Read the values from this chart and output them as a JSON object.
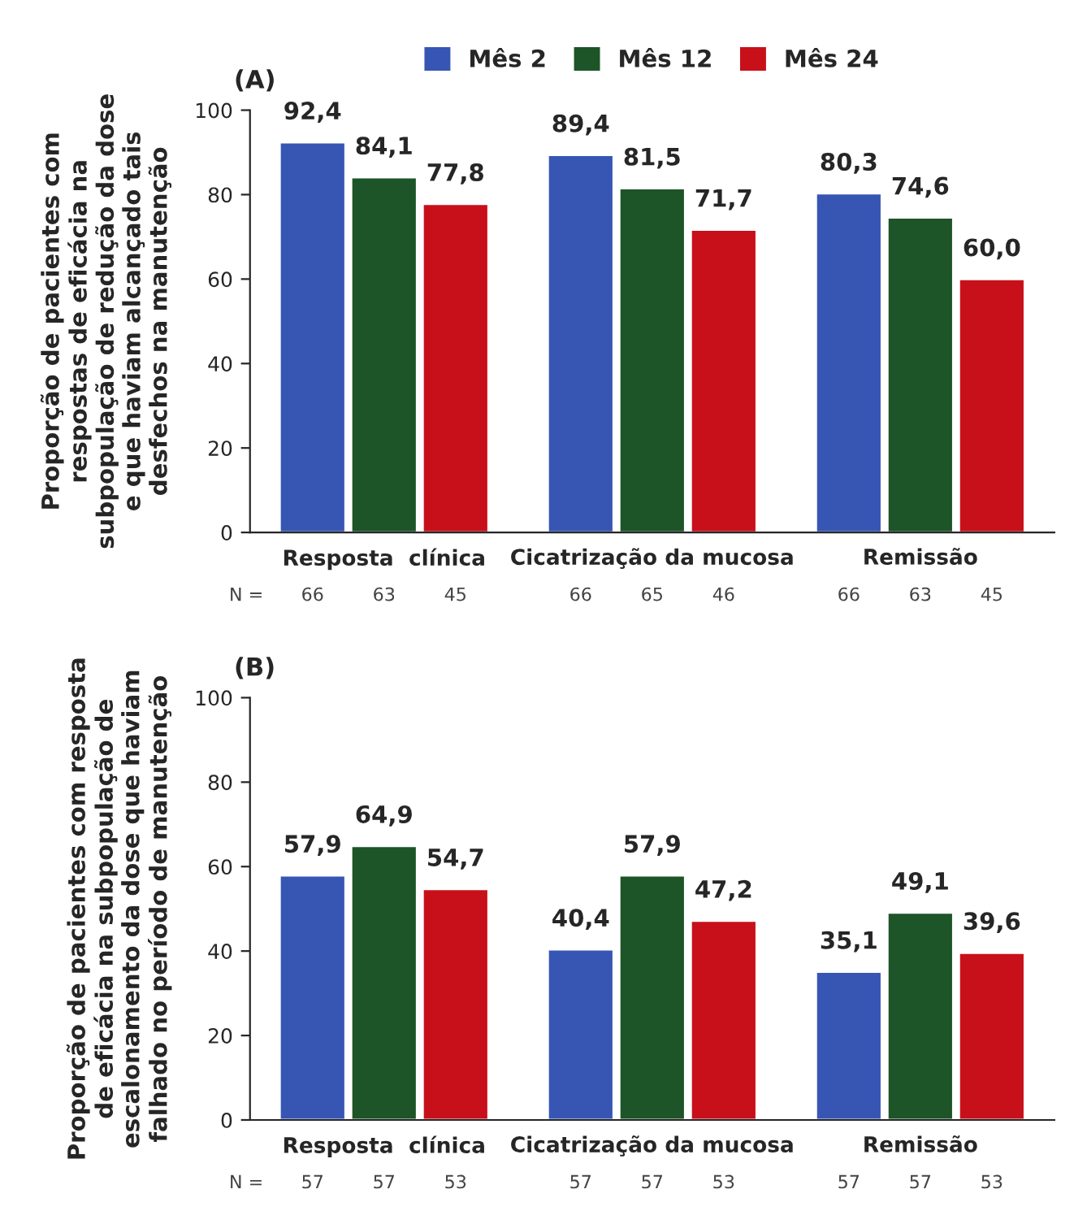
{
  "chart_data": [
    {
      "type": "bar",
      "title": "(A)",
      "ylabel": "Proporção de pacientes com\nrespostas de eficácia na\nsubpopulação de redução da dose\ne que haviam alcançado tais\ndesfechos na manutenção",
      "categories": [
        "Resposta  clínica",
        "Cicatrização da mucosa",
        "Remissão"
      ],
      "series": [
        {
          "name": "Mês 2",
          "color": "#3756b4",
          "values": [
            92.4,
            89.4,
            80.3
          ],
          "value_labels": [
            "92,4",
            "89,4",
            "80,3"
          ]
        },
        {
          "name": "Mês 12",
          "color": "#1d5428",
          "values": [
            84.1,
            81.5,
            74.6
          ],
          "value_labels": [
            "84,1",
            "81,5",
            "74,6"
          ]
        },
        {
          "name": "Mês 24",
          "color": "#c8101a",
          "values": [
            77.8,
            71.7,
            60.0
          ],
          "value_labels": [
            "77,8",
            "71,7",
            "60,0"
          ]
        }
      ],
      "ylim": [
        0,
        100
      ],
      "yticks": [
        0,
        20,
        40,
        60,
        80,
        100
      ],
      "grid": false,
      "legend": "top",
      "annotations": [
        "N =",
        "66",
        "63",
        "45",
        "66",
        "65",
        "46",
        "66",
        "63",
        "45"
      ]
    },
    {
      "type": "bar",
      "title": "(B)",
      "ylabel": "Proporção de pacientes com resposta\nde eficácia na subpopulação de\nescalonamento da dose que haviam\nfalhado no período de manutenção",
      "categories": [
        "Resposta  clínica",
        "Cicatrização da mucosa",
        "Remissão"
      ],
      "series": [
        {
          "color": "#3756b4",
          "values": [
            57.9,
            40.4,
            35.1
          ],
          "value_labels": [
            "57,9",
            "40,4",
            "35,1"
          ]
        },
        {
          "color": "#1d5428",
          "values": [
            64.9,
            57.9,
            49.1
          ],
          "value_labels": [
            "64,9",
            "57,9",
            "49,1"
          ]
        },
        {
          "color": "#c8101a",
          "values": [
            54.7,
            47.2,
            39.6
          ],
          "value_labels": [
            "54,7",
            "47,2",
            "39,6"
          ]
        }
      ],
      "ylim": [
        0,
        100
      ],
      "yticks": [
        0,
        20,
        40,
        60,
        80,
        100
      ],
      "grid": false,
      "annotations": [
        "N =",
        "57",
        "57",
        "53",
        "57",
        "57",
        "53",
        "57",
        "57",
        "53"
      ]
    }
  ]
}
